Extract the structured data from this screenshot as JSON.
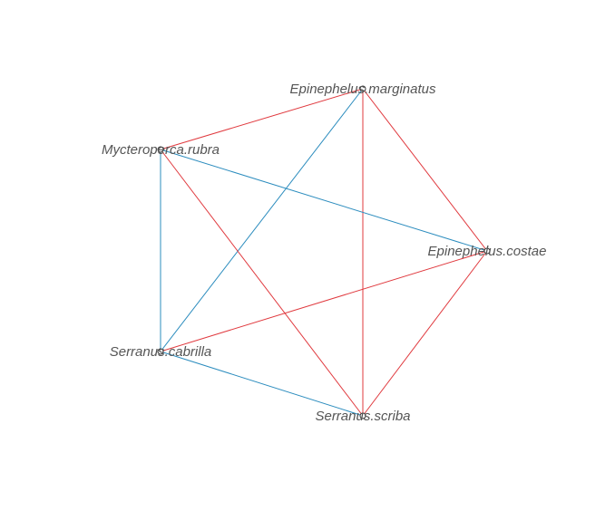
{
  "nodes": [
    {
      "id": "em",
      "label": "Epinephelus.marginatus"
    },
    {
      "id": "mr",
      "label": "Mycteroperca.rubra"
    },
    {
      "id": "ec",
      "label": "Epinephelus.costae"
    },
    {
      "id": "sc",
      "label": "Serranus.cabrilla"
    },
    {
      "id": "ss",
      "label": "Serranus.scriba"
    }
  ],
  "edges": [
    {
      "from": "em",
      "to": "mr",
      "kind": "red"
    },
    {
      "from": "em",
      "to": "ec",
      "kind": "red"
    },
    {
      "from": "em",
      "to": "ss",
      "kind": "red"
    },
    {
      "from": "em",
      "to": "sc",
      "kind": "blue"
    },
    {
      "from": "mr",
      "to": "ec",
      "kind": "blue"
    },
    {
      "from": "mr",
      "to": "sc",
      "kind": "blue"
    },
    {
      "from": "mr",
      "to": "ss",
      "kind": "red"
    },
    {
      "from": "ec",
      "to": "sc",
      "kind": "red"
    },
    {
      "from": "ec",
      "to": "ss",
      "kind": "red"
    },
    {
      "from": "sc",
      "to": "ss",
      "kind": "blue"
    }
  ],
  "colors": {
    "red": "#e0393e",
    "blue": "#2b8cbe",
    "node_stroke": "#333333",
    "label": "#555555"
  }
}
